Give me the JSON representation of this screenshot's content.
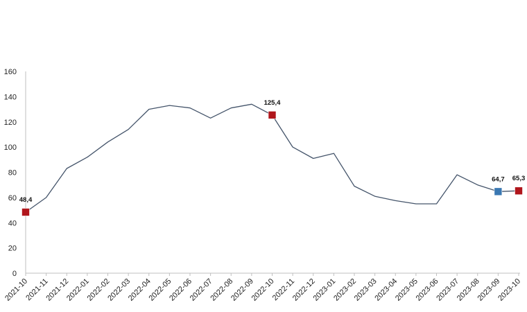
{
  "chart_data": {
    "type": "line",
    "title": "",
    "xlabel": "",
    "ylabel": "",
    "ylim": [
      0,
      160
    ],
    "yticks": [
      0,
      20,
      40,
      60,
      80,
      100,
      120,
      140,
      160
    ],
    "grid": false,
    "categories": [
      "2021-10",
      "2021-11",
      "2021-12",
      "2022-01",
      "2022-02",
      "2022-03",
      "2022-04",
      "2022-05",
      "2022-06",
      "2022-07",
      "2022-08",
      "2022-09",
      "2022-10",
      "2022-11",
      "2022-12",
      "2023-01",
      "2023-02",
      "2023-03",
      "2023-04",
      "2023-05",
      "2023-06",
      "2023-07",
      "2023-08",
      "2023-09",
      "2023-10"
    ],
    "series": [
      {
        "values": [
          48.4,
          60,
          83,
          92,
          104,
          114,
          130,
          133,
          131,
          123,
          131,
          134,
          125.4,
          100,
          91,
          95,
          69,
          61,
          57.5,
          55,
          55,
          78,
          70,
          64.7,
          65.3
        ],
        "color": "#44546a"
      }
    ],
    "markers": [
      {
        "index": 0,
        "label": "48,4",
        "color": "#b0161c",
        "label_side": "above"
      },
      {
        "index": 12,
        "label": "125,4",
        "color": "#b0161c",
        "label_side": "above"
      },
      {
        "index": 23,
        "label": "64,7",
        "color": "#3a78b2",
        "label_side": "above"
      },
      {
        "index": 24,
        "label": "65,3",
        "color": "#b0161c",
        "label_side": "above"
      }
    ],
    "axis_color": "#bfbfbf"
  }
}
